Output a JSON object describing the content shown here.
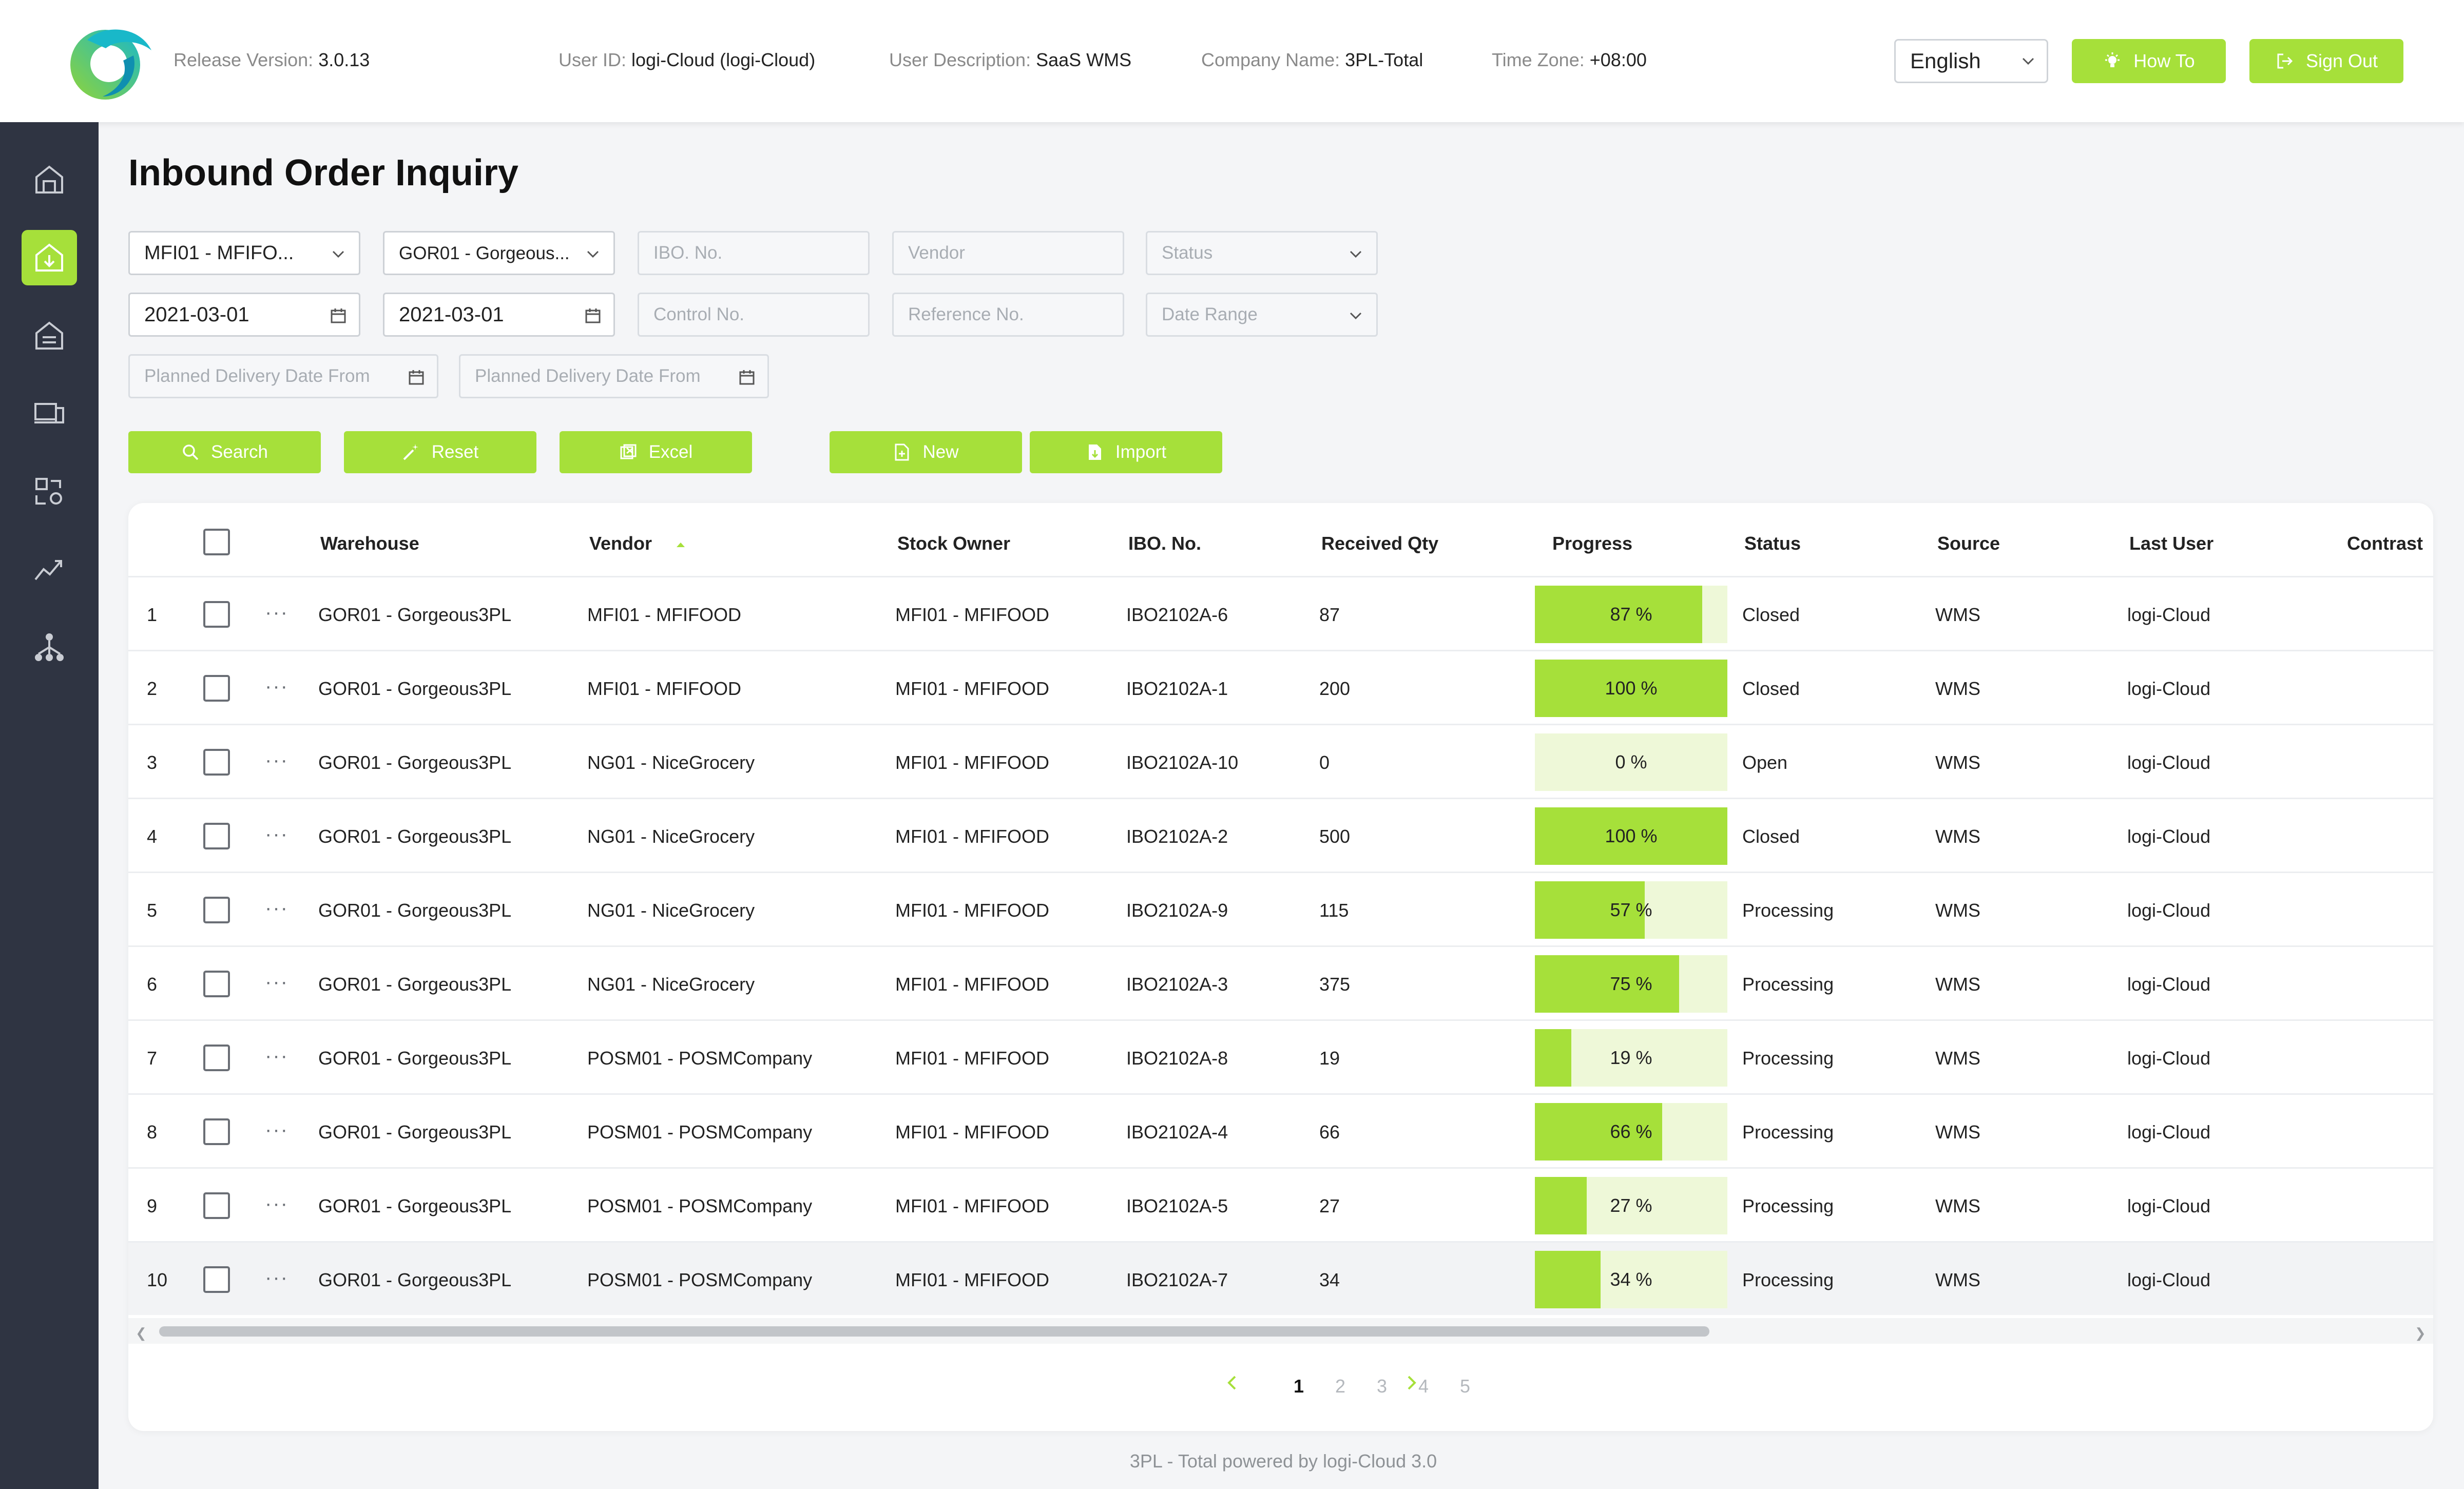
{
  "header": {
    "release_label": "Release Version:",
    "release_value": "3.0.13",
    "userid_label": "User ID:",
    "userid_value": "logi-Cloud (logi-Cloud)",
    "userdesc_label": "User Description:",
    "userdesc_value": "SaaS WMS",
    "company_label": "Company Name:",
    "company_value": "3PL-Total",
    "timezone_label": "Time Zone:",
    "timezone_value": "+08:00",
    "language": "English",
    "howto_label": "How To",
    "signout_label": "Sign Out"
  },
  "sidebar": {
    "items": [
      {
        "icon": "home-warehouse-icon",
        "active": false
      },
      {
        "icon": "inbound-warehouse-icon",
        "active": true
      },
      {
        "icon": "outbound-warehouse-icon",
        "active": false
      },
      {
        "icon": "devices-icon",
        "active": false
      },
      {
        "icon": "transfer-icon",
        "active": false
      },
      {
        "icon": "analytics-icon",
        "active": false
      },
      {
        "icon": "hierarchy-icon",
        "active": false
      }
    ]
  },
  "page": {
    "title": "Inbound Order Inquiry"
  },
  "filters": {
    "owner": "MFI01 - MFIFO...",
    "warehouse": "GOR01 - Gorgeous...",
    "ibo_placeholder": "IBO. No.",
    "vendor_placeholder": "Vendor",
    "status_placeholder": "Status",
    "date_from": "2021-03-01",
    "date_to": "2021-03-01",
    "control_placeholder": "Control No.",
    "reference_placeholder": "Reference No.",
    "date_range_placeholder": "Date Range",
    "planned_from_placeholder": "Planned Delivery Date From",
    "planned_to_placeholder": "Planned Delivery Date From"
  },
  "actions": {
    "search": "Search",
    "reset": "Reset",
    "excel": "Excel",
    "new": "New",
    "import": "Import"
  },
  "table": {
    "columns": {
      "warehouse": "Warehouse",
      "vendor": "Vendor",
      "stock_owner": "Stock Owner",
      "ibo_no": "IBO. No.",
      "received_qty": "Received Qty",
      "progress": "Progress",
      "status": "Status",
      "source": "Source",
      "last_user": "Last User",
      "contrast": "Contrast"
    },
    "rows": [
      {
        "no": "1",
        "warehouse": "GOR01 - Gorgeous3PL",
        "vendor": "MFI01 - MFIFOOD",
        "stock_owner": "MFI01 - MFIFOOD",
        "ibo_no": "IBO2102A-6",
        "received_qty": "87",
        "progress": 87,
        "progress_label": "87 %",
        "status": "Closed",
        "source": "WMS",
        "last_user": "logi-Cloud"
      },
      {
        "no": "2",
        "warehouse": "GOR01 - Gorgeous3PL",
        "vendor": "MFI01 - MFIFOOD",
        "stock_owner": "MFI01 - MFIFOOD",
        "ibo_no": "IBO2102A-1",
        "received_qty": "200",
        "progress": 100,
        "progress_label": "100 %",
        "status": "Closed",
        "source": "WMS",
        "last_user": "logi-Cloud"
      },
      {
        "no": "3",
        "warehouse": "GOR01 - Gorgeous3PL",
        "vendor": "NG01 - NiceGrocery",
        "stock_owner": "MFI01 - MFIFOOD",
        "ibo_no": "IBO2102A-10",
        "received_qty": "0",
        "progress": 0,
        "progress_label": "0 %",
        "status": "Open",
        "source": "WMS",
        "last_user": "logi-Cloud"
      },
      {
        "no": "4",
        "warehouse": "GOR01 - Gorgeous3PL",
        "vendor": "NG01 - NiceGrocery",
        "stock_owner": "MFI01 - MFIFOOD",
        "ibo_no": "IBO2102A-2",
        "received_qty": "500",
        "progress": 100,
        "progress_label": "100 %",
        "status": "Closed",
        "source": "WMS",
        "last_user": "logi-Cloud"
      },
      {
        "no": "5",
        "warehouse": "GOR01 - Gorgeous3PL",
        "vendor": "NG01 - NiceGrocery",
        "stock_owner": "MFI01 - MFIFOOD",
        "ibo_no": "IBO2102A-9",
        "received_qty": "115",
        "progress": 57,
        "progress_label": "57 %",
        "status": "Processing",
        "source": "WMS",
        "last_user": "logi-Cloud"
      },
      {
        "no": "6",
        "warehouse": "GOR01 - Gorgeous3PL",
        "vendor": "NG01 - NiceGrocery",
        "stock_owner": "MFI01 - MFIFOOD",
        "ibo_no": "IBO2102A-3",
        "received_qty": "375",
        "progress": 75,
        "progress_label": "75 %",
        "status": "Processing",
        "source": "WMS",
        "last_user": "logi-Cloud"
      },
      {
        "no": "7",
        "warehouse": "GOR01 - Gorgeous3PL",
        "vendor": "POSM01 - POSMCompany",
        "stock_owner": "MFI01 - MFIFOOD",
        "ibo_no": "IBO2102A-8",
        "received_qty": "19",
        "progress": 19,
        "progress_label": "19 %",
        "status": "Processing",
        "source": "WMS",
        "last_user": "logi-Cloud"
      },
      {
        "no": "8",
        "warehouse": "GOR01 - Gorgeous3PL",
        "vendor": "POSM01 - POSMCompany",
        "stock_owner": "MFI01 - MFIFOOD",
        "ibo_no": "IBO2102A-4",
        "received_qty": "66",
        "progress": 66,
        "progress_label": "66 %",
        "status": "Processing",
        "source": "WMS",
        "last_user": "logi-Cloud"
      },
      {
        "no": "9",
        "warehouse": "GOR01 - Gorgeous3PL",
        "vendor": "POSM01 - POSMCompany",
        "stock_owner": "MFI01 - MFIFOOD",
        "ibo_no": "IBO2102A-5",
        "received_qty": "27",
        "progress": 27,
        "progress_label": "27 %",
        "status": "Processing",
        "source": "WMS",
        "last_user": "logi-Cloud"
      },
      {
        "no": "10",
        "warehouse": "GOR01 - Gorgeous3PL",
        "vendor": "POSM01 - POSMCompany",
        "stock_owner": "MFI01 - MFIFOOD",
        "ibo_no": "IBO2102A-7",
        "received_qty": "34",
        "progress": 34,
        "progress_label": "34 %",
        "status": "Processing",
        "source": "WMS",
        "last_user": "logi-Cloud"
      }
    ]
  },
  "pagination": {
    "pages": [
      "1",
      "2",
      "3",
      "4",
      "5"
    ],
    "current": "1"
  },
  "footer": {
    "text": "3PL - Total powered by logi-Cloud 3.0"
  },
  "colors": {
    "accent": "#a6e03a",
    "sidebar": "#2f3442",
    "progress_bg": "#eef8d8"
  }
}
